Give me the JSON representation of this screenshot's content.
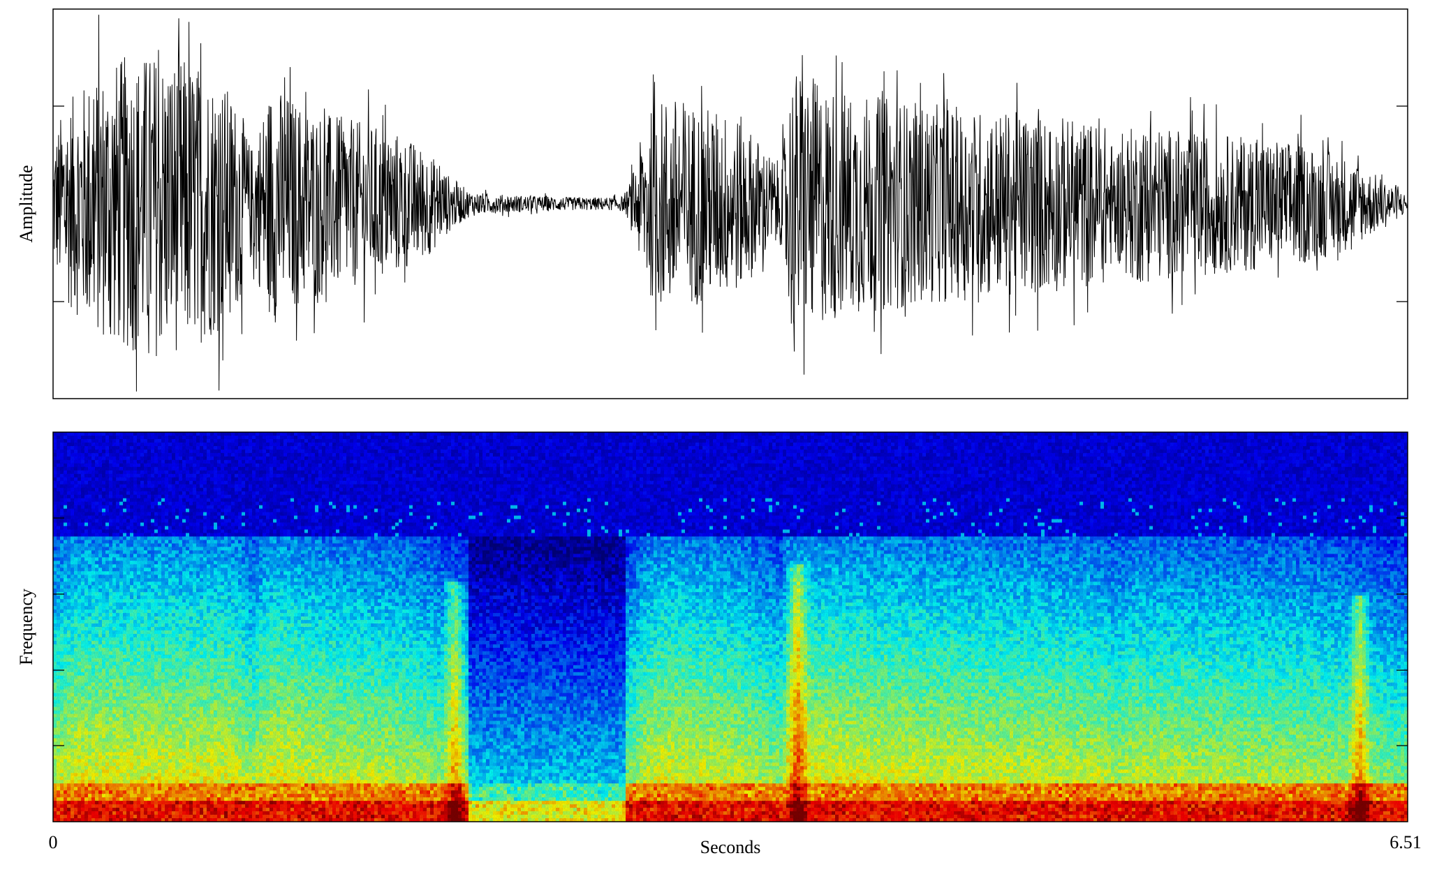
{
  "chart_data": [
    {
      "type": "line",
      "panel": "waveform",
      "ylabel": "Amplitude",
      "xlim": [
        0,
        6.51
      ],
      "ylim": [
        -1,
        1
      ],
      "grid": false,
      "line_color": "#000000",
      "envelope": {
        "t": [
          0,
          0.05,
          0.2,
          0.35,
          0.5,
          0.65,
          0.8,
          0.9,
          0.95,
          1.05,
          1.2,
          1.35,
          1.5,
          1.65,
          1.8,
          1.9,
          2.0,
          2.1,
          2.3,
          2.5,
          2.7,
          2.75,
          2.8,
          2.85,
          2.95,
          3.1,
          3.3,
          3.45,
          3.5,
          3.55,
          3.65,
          3.8,
          4.0,
          4.2,
          4.5,
          4.8,
          5.05,
          5.1,
          5.2,
          5.4,
          5.7,
          6.0,
          6.2,
          6.4,
          6.51
        ],
        "amp": [
          0.4,
          0.6,
          0.82,
          0.92,
          0.95,
          0.9,
          0.8,
          0.6,
          0.35,
          0.75,
          0.62,
          0.55,
          0.5,
          0.45,
          0.33,
          0.18,
          0.08,
          0.06,
          0.05,
          0.04,
          0.04,
          0.05,
          0.25,
          0.55,
          0.68,
          0.62,
          0.55,
          0.3,
          0.25,
          0.85,
          0.78,
          0.7,
          0.66,
          0.62,
          0.58,
          0.55,
          0.5,
          0.35,
          0.5,
          0.46,
          0.42,
          0.38,
          0.3,
          0.15,
          0.05
        ]
      }
    },
    {
      "type": "heatmap",
      "panel": "spectrogram",
      "ylabel": "Frequency",
      "xlabel": "Seconds",
      "xlim": [
        0,
        6.51
      ],
      "x_tick_labels": [
        "0",
        "6.51"
      ],
      "colormap": [
        "#00007f",
        "#0000ff",
        "#007fff",
        "#00ffff",
        "#7fff7f",
        "#ffff00",
        "#ff7f00",
        "#ff0000",
        "#7f0000"
      ],
      "silent_intervals": [
        [
          2.0,
          2.75
        ]
      ],
      "bursts": [
        [
          1.93,
          0.62
        ],
        [
          3.58,
          0.66
        ],
        [
          6.28,
          0.58
        ]
      ]
    }
  ]
}
